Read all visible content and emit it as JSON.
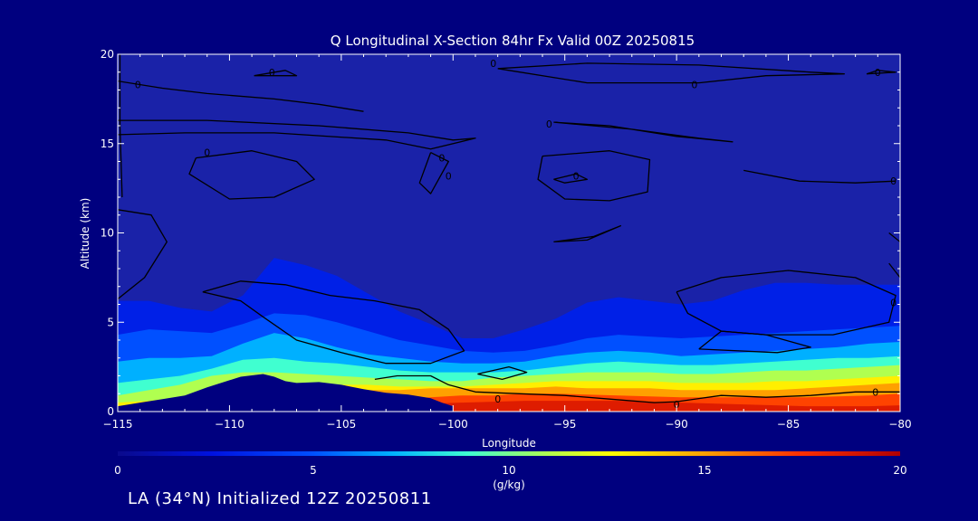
{
  "chart_data": {
    "type": "heatmap",
    "title": "Q Longitudinal X-Section 84hr  Fx Valid 00Z 20250815",
    "xlabel": "Longitude",
    "ylabel": "Altitude (km)",
    "xlim": [
      -115,
      -80
    ],
    "ylim": [
      0,
      20
    ],
    "x_ticks": [
      -115,
      -110,
      -105,
      -100,
      -95,
      -90,
      -85,
      -80
    ],
    "x_tick_labels": [
      "−115",
      "−110",
      "−105",
      "−100",
      "−95",
      "−90",
      "−85",
      "−80"
    ],
    "y_ticks": [
      0,
      5,
      10,
      15,
      20
    ],
    "y_tick_labels": [
      "0",
      "5",
      "10",
      "15",
      "20"
    ],
    "colorbar": {
      "label": "(g/kg)",
      "range": [
        0,
        20
      ],
      "ticks": [
        0,
        5,
        10,
        15,
        20
      ],
      "tick_labels": [
        "0",
        "5",
        "10",
        "15",
        "20"
      ]
    },
    "terrain_profile": {
      "lon": [
        -115,
        -114,
        -113,
        -112,
        -111,
        -110,
        -109.5,
        -108.5,
        -108,
        -107.5,
        -107,
        -106,
        -105,
        -104,
        -103,
        -102,
        -101,
        -100.5,
        -100
      ],
      "alt": [
        0.3,
        0.5,
        0.7,
        0.9,
        1.35,
        1.75,
        1.95,
        2.1,
        1.95,
        1.7,
        1.6,
        1.65,
        1.5,
        1.25,
        1.05,
        0.95,
        0.75,
        0.5,
        0.3
      ]
    },
    "moisture_layers": [
      {
        "q": 3,
        "alt": [
          6.2,
          6.2,
          5.8,
          5.6,
          6.5,
          8.6,
          8.2,
          7.6,
          6.6,
          5.6,
          4.9,
          4.1,
          4.1,
          4.6,
          5.2,
          6.1,
          6.4,
          6.2,
          6.0,
          6.2,
          6.8,
          7.2,
          7.2,
          7.1,
          7.1,
          7.1
        ]
      },
      {
        "q": 5,
        "alt": [
          4.3,
          4.6,
          4.5,
          4.4,
          4.9,
          5.5,
          5.4,
          5.0,
          4.5,
          4.0,
          3.7,
          3.4,
          3.3,
          3.4,
          3.7,
          4.1,
          4.3,
          4.2,
          4.1,
          4.2,
          4.3,
          4.4,
          4.5,
          4.6,
          4.7,
          4.8
        ]
      },
      {
        "q": 7,
        "alt": [
          2.8,
          3.0,
          3.0,
          3.1,
          3.8,
          4.4,
          4.1,
          3.6,
          3.2,
          3.0,
          2.8,
          2.7,
          2.7,
          2.8,
          3.1,
          3.3,
          3.4,
          3.3,
          3.1,
          3.2,
          3.3,
          3.4,
          3.5,
          3.6,
          3.8,
          3.9
        ]
      },
      {
        "q": 9,
        "alt": [
          1.6,
          1.8,
          2.0,
          2.4,
          2.9,
          3.0,
          2.8,
          2.7,
          2.5,
          2.3,
          2.2,
          2.2,
          2.2,
          2.3,
          2.5,
          2.7,
          2.8,
          2.7,
          2.6,
          2.6,
          2.7,
          2.8,
          2.9,
          3.0,
          3.0,
          3.1
        ]
      },
      {
        "q": 11,
        "alt": [
          0.9,
          1.2,
          1.5,
          2.0,
          2.2,
          2.2,
          2.1,
          2.0,
          1.9,
          1.8,
          1.7,
          1.7,
          1.9,
          2.0,
          2.1,
          2.2,
          2.2,
          2.2,
          2.1,
          2.1,
          2.2,
          2.3,
          2.3,
          2.4,
          2.5,
          2.6
        ]
      },
      {
        "q": 13,
        "alt": [
          0.5,
          0.6,
          0.8,
          1.0,
          1.2,
          1.4,
          1.5,
          1.5,
          1.5,
          1.4,
          1.4,
          1.4,
          1.5,
          1.6,
          1.7,
          1.7,
          1.7,
          1.7,
          1.6,
          1.6,
          1.6,
          1.7,
          1.7,
          1.8,
          1.9,
          2.0
        ]
      },
      {
        "q": 15,
        "alt": [
          0.3,
          0.3,
          0.3,
          0.4,
          0.5,
          0.6,
          0.8,
          1.0,
          1.2,
          1.2,
          1.3,
          1.3,
          1.3,
          1.3,
          1.4,
          1.3,
          1.3,
          1.3,
          1.2,
          1.2,
          1.2,
          1.2,
          1.3,
          1.4,
          1.5,
          1.6
        ]
      },
      {
        "q": 17,
        "alt": [
          0.2,
          0.2,
          0.2,
          0.2,
          0.2,
          0.3,
          0.4,
          0.5,
          0.6,
          0.7,
          0.8,
          0.9,
          0.9,
          1.0,
          1.0,
          0.95,
          0.9,
          0.85,
          0.8,
          0.8,
          0.8,
          0.8,
          0.8,
          0.85,
          0.9,
          1.0
        ]
      },
      {
        "q": 18.5,
        "alt": [
          0.1,
          0.1,
          0.1,
          0.1,
          0.1,
          0.15,
          0.2,
          0.3,
          0.35,
          0.4,
          0.45,
          0.5,
          0.55,
          0.6,
          0.6,
          0.6,
          0.6,
          0.55,
          0.5,
          0.45,
          0.4,
          0.35,
          0.3,
          0.3,
          0.3,
          0.35
        ]
      }
    ],
    "contours": [
      {
        "level": "0",
        "points": [
          [
            -103.5,
            1.8
          ],
          [
            -102.5,
            2
          ],
          [
            -101,
            2
          ],
          [
            -100.2,
            1.5
          ],
          [
            -99,
            1.1
          ],
          [
            -97,
            1.0
          ],
          [
            -95,
            0.9
          ],
          [
            -93,
            0.7
          ],
          [
            -91,
            0.5
          ],
          [
            -90,
            0.55
          ],
          [
            -88,
            0.9
          ],
          [
            -86,
            0.8
          ],
          [
            -84,
            0.9
          ],
          [
            -82,
            1.1
          ],
          [
            -80,
            1.1
          ]
        ]
      },
      {
        "level": "0",
        "points": [
          [
            -98.9,
            2.1
          ],
          [
            -97.5,
            2.5
          ],
          [
            -96.7,
            2.2
          ],
          [
            -97.8,
            1.8
          ],
          [
            -98.9,
            2.1
          ]
        ]
      },
      {
        "level": "0",
        "points": [
          [
            -89,
            3.5
          ],
          [
            -88,
            4.5
          ],
          [
            -86,
            4.3
          ],
          [
            -84,
            3.6
          ],
          [
            -85.5,
            3.3
          ],
          [
            -89,
            3.5
          ]
        ]
      },
      {
        "level": "0",
        "points": [
          [
            -111.2,
            6.7
          ],
          [
            -109.5,
            7.3
          ],
          [
            -107.5,
            7.1
          ],
          [
            -105.5,
            6.5
          ],
          [
            -103.5,
            6.2
          ],
          [
            -101.5,
            5.7
          ],
          [
            -100.2,
            4.6
          ],
          [
            -99.5,
            3.4
          ],
          [
            -101,
            2.7
          ],
          [
            -103,
            2.7
          ],
          [
            -105,
            3.3
          ],
          [
            -107,
            4.0
          ],
          [
            -108.5,
            5.3
          ],
          [
            -109.5,
            6.2
          ],
          [
            -111.2,
            6.7
          ]
        ]
      },
      {
        "level": "0",
        "points": [
          [
            -90,
            6.7
          ],
          [
            -88,
            7.5
          ],
          [
            -85,
            7.9
          ],
          [
            -82,
            7.5
          ],
          [
            -80.2,
            6.5
          ],
          [
            -80.5,
            5
          ],
          [
            -83,
            4.3
          ],
          [
            -86,
            4.3
          ],
          [
            -88,
            4.5
          ],
          [
            -89.5,
            5.5
          ],
          [
            -90,
            6.7
          ]
        ]
      },
      {
        "level": "0",
        "points": [
          [
            -115,
            11.3
          ],
          [
            -113.5,
            11.0
          ],
          [
            -112.8,
            9.5
          ],
          [
            -113.8,
            7.5
          ],
          [
            -115,
            6.3
          ]
        ]
      },
      {
        "level": "0",
        "points": [
          [
            -95.5,
            9.5
          ],
          [
            -94,
            9.6
          ],
          [
            -92.5,
            10.4
          ],
          [
            -93.7,
            9.8
          ],
          [
            -95.5,
            9.5
          ]
        ]
      },
      {
        "level": "0",
        "points": [
          [
            -80.5,
            10
          ],
          [
            -80,
            9.5
          ],
          [
            -80,
            7.5
          ],
          [
            -80.5,
            8.3
          ]
        ]
      },
      {
        "level": "0",
        "points": [
          [
            -111.5,
            14.2
          ],
          [
            -109,
            14.6
          ],
          [
            -107,
            14
          ],
          [
            -106.2,
            13
          ],
          [
            -108,
            12
          ],
          [
            -110,
            11.9
          ],
          [
            -111.8,
            13.3
          ],
          [
            -111.5,
            14.2
          ]
        ]
      },
      {
        "level": "0",
        "points": [
          [
            -101,
            14.5
          ],
          [
            -100.2,
            14
          ],
          [
            -101,
            12.2
          ],
          [
            -101.5,
            12.8
          ],
          [
            -101,
            14.5
          ]
        ]
      },
      {
        "level": "0",
        "points": [
          [
            -96,
            14.3
          ],
          [
            -93,
            14.6
          ],
          [
            -91.2,
            14.1
          ],
          [
            -91.3,
            12.3
          ],
          [
            -93,
            11.8
          ],
          [
            -95,
            11.9
          ],
          [
            -96.2,
            13
          ],
          [
            -96,
            14.3
          ]
        ]
      },
      {
        "level": "0",
        "points": [
          [
            -95.5,
            13
          ],
          [
            -94.5,
            13.3
          ],
          [
            -94,
            13.0
          ],
          [
            -95,
            12.8
          ],
          [
            -95.5,
            13
          ]
        ]
      },
      {
        "level": "0",
        "points": [
          [
            -87,
            13.5
          ],
          [
            -84.5,
            12.9
          ],
          [
            -82,
            12.8
          ],
          [
            -80.2,
            12.9
          ]
        ]
      },
      {
        "level": "0",
        "points": [
          [
            -115,
            16.3
          ],
          [
            -111,
            16.3
          ],
          [
            -106,
            16
          ],
          [
            -102,
            15.6
          ],
          [
            -100,
            15.2
          ],
          [
            -99,
            15.3
          ],
          [
            -101,
            14.7
          ],
          [
            -103,
            15.2
          ],
          [
            -108,
            15.6
          ],
          [
            -112,
            15.6
          ],
          [
            -115,
            15.5
          ]
        ]
      },
      {
        "level": "0",
        "points": [
          [
            -95.5,
            16.2
          ],
          [
            -93,
            16.0
          ],
          [
            -90,
            15.4
          ],
          [
            -87.5,
            15.1
          ],
          [
            -89,
            15.3
          ],
          [
            -92,
            15.8
          ],
          [
            -95.5,
            16.2
          ]
        ]
      },
      {
        "level": "0",
        "points": [
          [
            -115,
            18.5
          ],
          [
            -113,
            18.1
          ],
          [
            -111,
            17.8
          ],
          [
            -108,
            17.5
          ],
          [
            -106,
            17.2
          ],
          [
            -104,
            16.8
          ]
        ]
      },
      {
        "level": "0",
        "points": [
          [
            -108.9,
            18.8
          ],
          [
            -107.5,
            19.1
          ],
          [
            -107.0,
            18.8
          ],
          [
            -108.9,
            18.8
          ]
        ]
      },
      {
        "level": "0",
        "points": [
          [
            -98,
            19.2
          ],
          [
            -94,
            19.5
          ],
          [
            -89,
            19.4
          ],
          [
            -84,
            19.0
          ],
          [
            -82.5,
            18.9
          ],
          [
            -86,
            18.8
          ],
          [
            -89,
            18.4
          ],
          [
            -94,
            18.4
          ],
          [
            -98,
            19.2
          ]
        ]
      },
      {
        "level": "0",
        "points": [
          [
            -81.5,
            18.9
          ],
          [
            -81,
            19.1
          ],
          [
            -80.2,
            19.0
          ],
          [
            -81.5,
            18.9
          ]
        ]
      },
      {
        "level": "0",
        "points": [
          [
            -114.8,
            12
          ],
          [
            -114.9,
            16
          ],
          [
            -114.9,
            20
          ]
        ]
      }
    ],
    "contour_labels": [
      {
        "text": "0",
        "lon": -98,
        "alt": 0.7
      },
      {
        "text": "0",
        "lon": -90,
        "alt": 0.4
      },
      {
        "text": "0",
        "lon": -81.1,
        "alt": 1.1
      },
      {
        "text": "0",
        "lon": -80.3,
        "alt": 6.1
      },
      {
        "text": "0",
        "lon": -114.1,
        "alt": 18.3
      },
      {
        "text": "0",
        "lon": -108.1,
        "alt": 19.0
      },
      {
        "text": "0",
        "lon": -98.2,
        "alt": 19.5
      },
      {
        "text": "0",
        "lon": -89.2,
        "alt": 18.3
      },
      {
        "text": "0",
        "lon": -81.0,
        "alt": 19.0
      },
      {
        "text": "0",
        "lon": -95.7,
        "alt": 16.1
      },
      {
        "text": "0",
        "lon": -111.0,
        "alt": 14.5
      },
      {
        "text": "0",
        "lon": -100.5,
        "alt": 14.2
      },
      {
        "text": "0",
        "lon": -100.2,
        "alt": 13.2
      },
      {
        "text": "0",
        "lon": -94.5,
        "alt": 13.2
      },
      {
        "text": "0",
        "lon": -80.3,
        "alt": 12.9
      }
    ]
  },
  "footer": {
    "caption": "LA (34°N) Initialized 12Z 20250811"
  }
}
